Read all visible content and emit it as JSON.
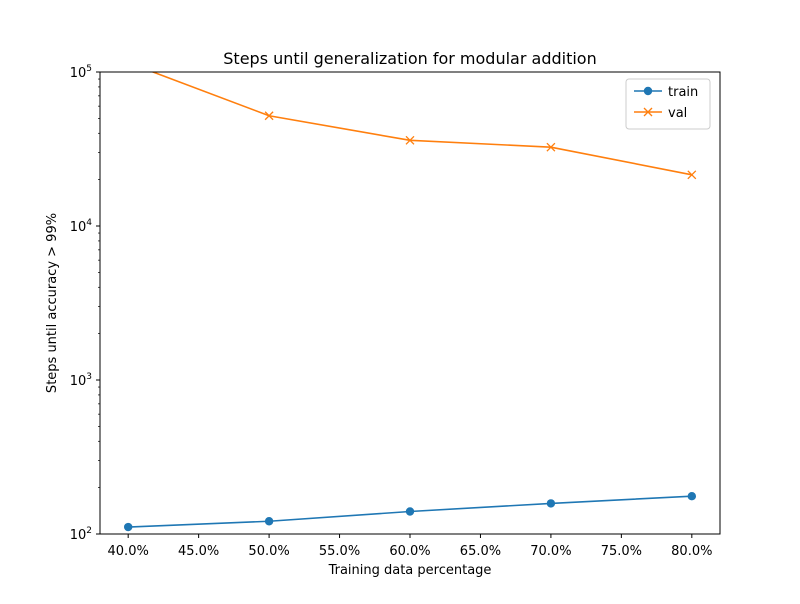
{
  "chart_data": {
    "type": "line",
    "title": "Steps until generalization for modular addition",
    "xlabel": "Training data percentage",
    "ylabel": "Steps until accuracy > 99%",
    "x": [
      0.4,
      0.5,
      0.6,
      0.7,
      0.8
    ],
    "xlim": [
      0.38,
      0.82
    ],
    "xticks": [
      0.4,
      0.45,
      0.5,
      0.55,
      0.6,
      0.65,
      0.7,
      0.75,
      0.8
    ],
    "xtick_labels": [
      "40.0%",
      "45.0%",
      "50.0%",
      "55.0%",
      "60.0%",
      "65.0%",
      "70.0%",
      "75.0%",
      "80.0%"
    ],
    "yscale": "log",
    "ylim": [
      100,
      100000
    ],
    "yticks": [
      100,
      1000,
      10000,
      100000
    ],
    "ytick_labels": [
      {
        "base": "10",
        "exp": "2"
      },
      {
        "base": "10",
        "exp": "3"
      },
      {
        "base": "10",
        "exp": "4"
      },
      {
        "base": "10",
        "exp": "5"
      }
    ],
    "grid": false,
    "legend_position": "upper right",
    "series": [
      {
        "name": "train",
        "values": [
          111,
          121,
          140,
          158,
          176
        ],
        "color": "#1f77b4",
        "marker": "circle"
      },
      {
        "name": "val",
        "values": [
          115000,
          52000,
          36000,
          32500,
          21500
        ],
        "color": "#ff7f0e",
        "marker": "x"
      }
    ]
  }
}
